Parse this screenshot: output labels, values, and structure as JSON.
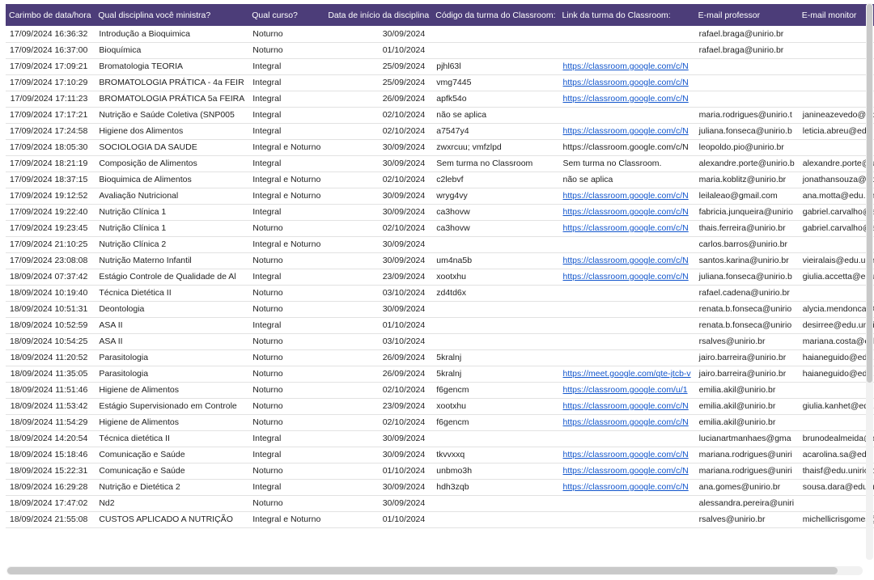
{
  "colors": {
    "header_bg": "#4c3d79",
    "header_fg": "#ffffff",
    "link": "#1155cc"
  },
  "table": {
    "columns": [
      {
        "label": "Carimbo de data/hora",
        "width": 131
      },
      {
        "label": "Qual disciplina você ministra?",
        "width": 152
      },
      {
        "label": "Qual curso?",
        "width": 110
      },
      {
        "label": "Data de início da disciplina",
        "width": 142
      },
      {
        "label": "Código da turma do Classroom:",
        "width": 164
      },
      {
        "label": "Link da turma do Classroom:",
        "width": 149
      },
      {
        "label": "E-mail professor",
        "width": 111
      },
      {
        "label": "E-mail monitor",
        "width": 109
      }
    ],
    "rows": [
      [
        "17/09/2024 16:36:32",
        "Introdução a Bioquimica",
        "Noturno",
        "30/09/2024",
        "",
        "",
        "rafael.braga@unirio.br",
        ""
      ],
      [
        "17/09/2024 16:37:00",
        "Bioquímica",
        "Noturno",
        "01/10/2024",
        "",
        "",
        "rafael.braga@unirio.br",
        ""
      ],
      [
        "17/09/2024 17:09:21",
        "Bromatologia  TEORIA",
        "Integral",
        "25/09/2024",
        "pjhl63l",
        {
          "text": "https://classroom.google.com/c/N",
          "link": true
        },
        "",
        ""
      ],
      [
        "17/09/2024 17:10:29",
        "BROMATOLOGIA PRÁTICA - 4a FEIR",
        "Integral",
        "25/09/2024",
        "vmg7445",
        {
          "text": "https://classroom.google.com/c/N",
          "link": true
        },
        "",
        ""
      ],
      [
        "17/09/2024 17:11:23",
        "BROMATOLOGIA PRÁTICA 5a FEIRA",
        "Integral",
        "26/09/2024",
        "apfk54o",
        {
          "text": "https://classroom.google.com/c/N",
          "link": true
        },
        "",
        ""
      ],
      [
        "17/09/2024 17:17:21",
        "Nutrição e Saúde Coletiva  (SNP005",
        "Integral",
        "02/10/2024",
        "não se aplica",
        "",
        "maria.rodrigues@unirio.t",
        "janineazevedo@edu.unir"
      ],
      [
        "17/09/2024 17:24:58",
        "Higiene dos Alimentos",
        "Integral",
        "02/10/2024",
        "a7547y4",
        {
          "text": "https://classroom.google.com/c/N",
          "link": true
        },
        "juliana.fonseca@unirio.b",
        "leticia.abreu@edu.unirio."
      ],
      [
        "17/09/2024 18:05:30",
        "SOCIOLOGIA DA SAUDE",
        "Integral e Noturno",
        "30/09/2024",
        "zwxrcuu; vmfzlpd",
        "https://classroom.google.com/c/N",
        "leopoldo.pio@unirio.br",
        ""
      ],
      [
        "17/09/2024 18:21:19",
        "Composição de Alimentos",
        "Integral",
        "30/09/2024",
        "Sem turma no Classroom",
        "Sem turma no Classroom.",
        "alexandre.porte@unirio.b",
        "alexandre.porte@unirio.b"
      ],
      [
        "17/09/2024 18:37:15",
        "Bioquimica de Alimentos",
        "Integral e Noturno",
        "02/10/2024",
        "c2lebvf",
        "não se aplica",
        "maria.koblitz@unirio.br",
        "jonathansouza@edu.unir"
      ],
      [
        "17/09/2024 19:12:52",
        "Avaliação Nutricional",
        "Integral e Noturno",
        "30/09/2024",
        "wryg4vy",
        {
          "text": "https://classroom.google.com/c/N",
          "link": true
        },
        "leilaleao@gmail.com",
        "ana.motta@edu.unirio.br"
      ],
      [
        "17/09/2024 19:22:40",
        "Nutrição Clínica 1",
        "Integral",
        "30/09/2024",
        "ca3hovw",
        {
          "text": "https://classroom.google.com/c/N",
          "link": true
        },
        "fabricia.junqueira@unirio",
        "gabriel.carvalho@edu.un"
      ],
      [
        "17/09/2024 19:23:45",
        "Nutrição Clínica 1",
        "Noturno",
        "02/10/2024",
        "ca3hovw",
        {
          "text": "https://classroom.google.com/c/N",
          "link": true
        },
        "thais.ferreira@unirio.br",
        "gabriel.carvalho@edu.un"
      ],
      [
        "17/09/2024 21:10:25",
        "Nutrição Clínica 2",
        "Integral e Noturno",
        "30/09/2024",
        "",
        "",
        "carlos.barros@unirio.br",
        ""
      ],
      [
        "17/09/2024 23:08:08",
        "Nutrição Materno Infantil",
        "Noturno",
        "30/09/2024",
        "um4na5b",
        {
          "text": "https://classroom.google.com/c/N",
          "link": true
        },
        "santos.karina@unirio.br",
        "vieiralais@edu.unirio.br"
      ],
      [
        "18/09/2024 07:37:42",
        "Estágio Controle de Qualidade de Al",
        "Integral",
        "23/09/2024",
        "xootxhu",
        {
          "text": "https://classroom.google.com/c/N",
          "link": true
        },
        "juliana.fonseca@unirio.b",
        "giulia.accetta@edu.unirio"
      ],
      [
        "18/09/2024 10:19:40",
        "Técnica Dietética II",
        "Noturno",
        "03/10/2024",
        "zd4td6x",
        "",
        "rafael.cadena@unirio.br",
        ""
      ],
      [
        "18/09/2024 10:51:31",
        "Deontologia",
        "Noturno",
        "30/09/2024",
        "",
        "",
        "renata.b.fonseca@unirio",
        "alycia.mendonca@edu.u"
      ],
      [
        "18/09/2024 10:52:59",
        "ASA II",
        "Integral",
        "01/10/2024",
        "",
        "",
        "renata.b.fonseca@unirio",
        "desirree@edu.unirio.br"
      ],
      [
        "18/09/2024 10:54:25",
        "ASA II",
        "Noturno",
        "03/10/2024",
        "",
        "",
        "rsalves@unirio.br",
        "mariana.costa@edu.unir"
      ],
      [
        "18/09/2024 11:20:52",
        "Parasitologia",
        "Noturno",
        "26/09/2024",
        "5kralnj",
        "",
        "jairo.barreira@unirio.br",
        "haianeguido@edu.unirio."
      ],
      [
        "18/09/2024 11:35:05",
        "Parasitologia",
        "Noturno",
        "26/09/2024",
        "5kralnj",
        {
          "text": "https://meet.google.com/qte-jtcb-v",
          "link": true
        },
        "jairo.barreira@unirio.br",
        "haianeguido@edu.unirio."
      ],
      [
        "18/09/2024 11:51:46",
        "Higiene de Alimentos",
        "Noturno",
        "02/10/2024",
        "f6gencm",
        {
          "text": "https://classroom.google.com/u/1",
          "link": true
        },
        "emilia.akil@unirio.br",
        ""
      ],
      [
        "18/09/2024 11:53:42",
        "Estágio Supervisionado em Controle",
        "Noturno",
        "23/09/2024",
        "xootxhu",
        {
          "text": "https://classroom.google.com/c/N",
          "link": true
        },
        "emilia.akil@unirio.br",
        "giulia.kanhet@edu.unirio"
      ],
      [
        "18/09/2024 11:54:29",
        "Higiene de Alimentos",
        "Noturno",
        "02/10/2024",
        "f6gencm",
        {
          "text": "https://classroom.google.com/c/N",
          "link": true
        },
        "emilia.akil@unirio.br",
        ""
      ],
      [
        "18/09/2024 14:20:54",
        "Técnica dietética II",
        "Integral",
        "30/09/2024",
        "",
        "",
        "lucianartmanhaes@gma",
        "brunodealmeida@edu.un"
      ],
      [
        "18/09/2024 15:18:46",
        "Comunicação e Saúde",
        "Integral",
        "30/09/2024",
        "tkvvxxq",
        {
          "text": "https://classroom.google.com/c/N",
          "link": true
        },
        "mariana.rodrigues@uniri",
        "acarolina.sa@edu.unirio."
      ],
      [
        "18/09/2024 15:22:31",
        "Comunicação e Saúde",
        "Noturno",
        "01/10/2024",
        "unbmo3h",
        {
          "text": "https://classroom.google.com/c/N",
          "link": true
        },
        "mariana.rodrigues@uniri",
        "thaisf@edu.unirio.br"
      ],
      [
        "18/09/2024 16:29:28",
        "Nutrição e Dietética 2",
        "Integral",
        "30/09/2024",
        "hdh3zqb",
        {
          "text": "https://classroom.google.com/c/N",
          "link": true
        },
        "ana.gomes@unirio.br",
        "sousa.dara@edu.unirio.b"
      ],
      [
        "18/09/2024 17:47:02",
        "Nd2",
        "Noturno",
        "30/09/2024",
        "",
        "",
        "alessandra.pereira@uniri",
        ""
      ],
      [
        "18/09/2024 21:55:08",
        "CUSTOS APLICADO A  NUTRIÇÃO",
        "Integral e Noturno",
        "01/10/2024",
        "",
        "",
        "rsalves@unirio.br",
        "michellicrisgomes@edu."
      ]
    ]
  }
}
